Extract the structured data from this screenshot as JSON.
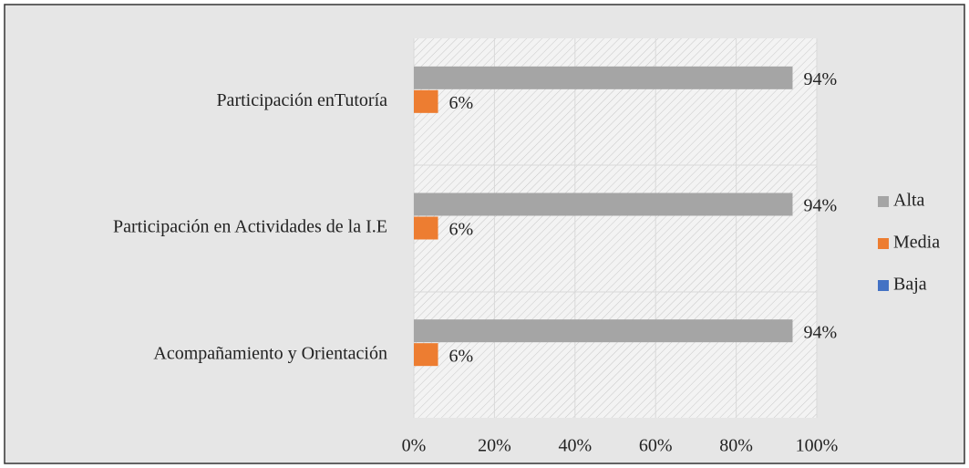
{
  "chart_data": {
    "type": "bar",
    "orientation": "horizontal",
    "categories": [
      "Participación enTutoría",
      "Participación en Actividades de la I.E",
      "Acompañamiento y Orientación"
    ],
    "series": [
      {
        "name": "Alta",
        "color": "#a5a5a5",
        "values": [
          94,
          94,
          94
        ],
        "value_labels": [
          "94%",
          "94%",
          "94%"
        ]
      },
      {
        "name": "Media",
        "color": "#ed7d31",
        "values": [
          6,
          6,
          6
        ],
        "value_labels": [
          "6%",
          "6%",
          "6%"
        ]
      },
      {
        "name": "Baja",
        "color": "#4472c4",
        "values": [
          0,
          0,
          0
        ]
      }
    ],
    "xlim": [
      0,
      100
    ],
    "xticks": [
      {
        "value": 0,
        "label": "0%"
      },
      {
        "value": 20,
        "label": "20%"
      },
      {
        "value": 40,
        "label": "40%"
      },
      {
        "value": 60,
        "label": "60%"
      },
      {
        "value": 80,
        "label": "80%"
      },
      {
        "value": 100,
        "label": "100%"
      }
    ],
    "grid": true,
    "legend": "right"
  }
}
